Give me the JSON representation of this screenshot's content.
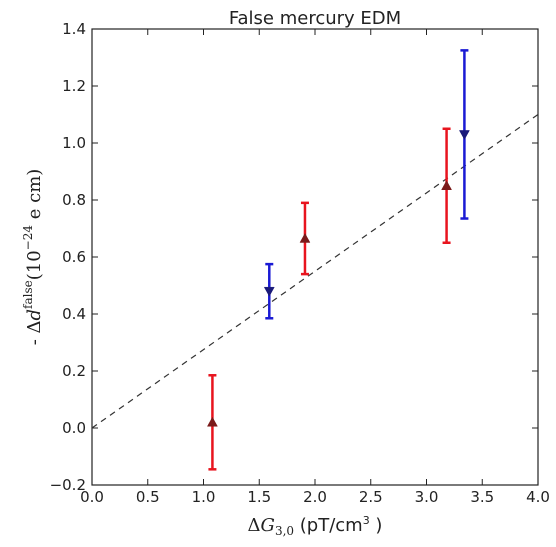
{
  "chart_data": {
    "type": "scatter",
    "title": "False mercury EDM",
    "xlabel": "ΔG3,0 (pT/cm3 )",
    "ylabel": "- Δdfalse(10−24 e cm)",
    "xlim": [
      0.0,
      4.0
    ],
    "ylim": [
      -0.2,
      1.4
    ],
    "x_ticks": [
      "0.0",
      "0.5",
      "1.0",
      "1.5",
      "2.0",
      "2.5",
      "3.0",
      "3.5",
      "4.0"
    ],
    "y_ticks": [
      "−0.2",
      "0.0",
      "0.2",
      "0.4",
      "0.6",
      "0.8",
      "1.0",
      "1.2",
      "1.4"
    ],
    "grid": false,
    "series": [
      {
        "color": "#e8141e",
        "marker": "triangle-up",
        "points": [
          {
            "x": 1.08,
            "y": 0.02,
            "err": 0.165
          },
          {
            "x": 1.91,
            "y": 0.665,
            "err": 0.125
          },
          {
            "x": 3.18,
            "y": 0.85,
            "err": 0.2
          }
        ]
      },
      {
        "color": "#1a1ad4",
        "marker": "triangle-down",
        "points": [
          {
            "x": 1.59,
            "y": 0.48,
            "err": 0.095
          },
          {
            "x": 3.34,
            "y": 1.03,
            "err": 0.295
          }
        ]
      }
    ],
    "fit_line": {
      "x": [
        0.0,
        4.0
      ],
      "y": [
        0.0,
        1.1
      ],
      "style": "dashed",
      "color": "#333333"
    }
  }
}
